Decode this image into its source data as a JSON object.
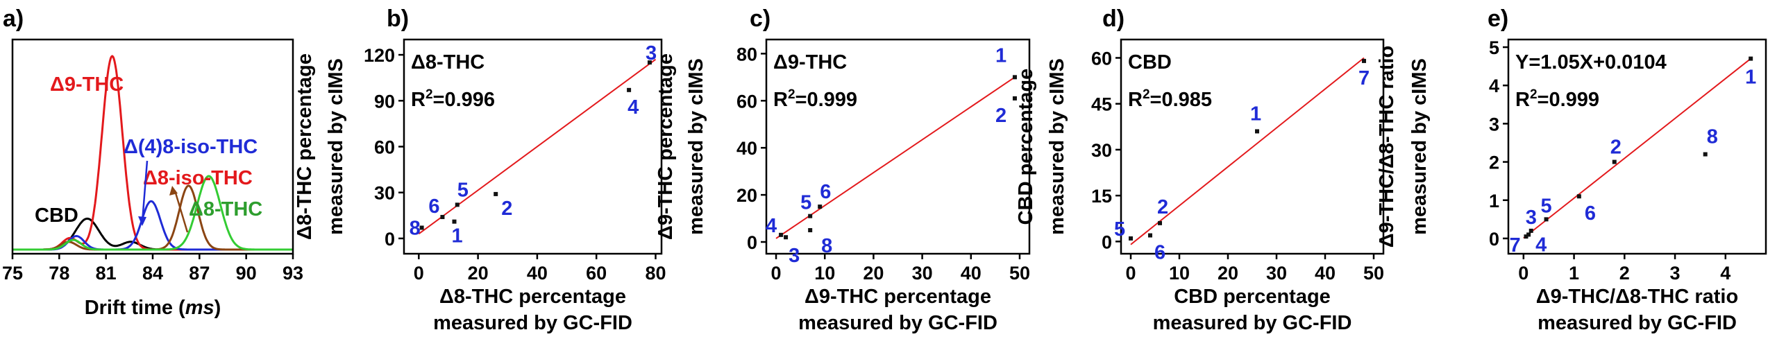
{
  "chart_data": [
    {
      "id": "a",
      "panel_label": "a)",
      "type": "line",
      "xlabel": "Drift time (ms)",
      "xlabel_main": "Drift time (",
      "xlabel_unit": "ms",
      "xlabel_close": ")",
      "xlim": [
        75,
        93
      ],
      "xticks": [
        "75",
        "78",
        "81",
        "84",
        "87",
        "90",
        "93"
      ],
      "grid": false,
      "series": [
        {
          "name": "CBD",
          "color": "#000000",
          "peaks": [
            {
              "center": 79.8,
              "height": 0.16,
              "sigma": 0.75
            },
            {
              "center": 82.6,
              "height": 0.04,
              "sigma": 0.6
            }
          ]
        },
        {
          "name": "Δ9-THC",
          "color": "#e3191c",
          "peaks": [
            {
              "center": 81.4,
              "height": 1.0,
              "sigma": 0.65
            },
            {
              "center": 78.7,
              "height": 0.06,
              "sigma": 0.5
            }
          ]
        },
        {
          "name": "Δ(4)8-iso-THC",
          "color": "#1f2bd6",
          "peaks": [
            {
              "center": 83.9,
              "height": 0.25,
              "sigma": 0.6
            },
            {
              "center": 79.1,
              "height": 0.07,
              "sigma": 0.5
            }
          ]
        },
        {
          "name": "Δ8-iso-THC",
          "color": "#8b4513",
          "peaks": [
            {
              "center": 86.3,
              "height": 0.33,
              "sigma": 0.6
            },
            {
              "center": 78.6,
              "height": 0.04,
              "sigma": 0.5
            }
          ]
        },
        {
          "name": "Δ8-THC",
          "color": "#33cc33",
          "peaks": [
            {
              "center": 87.6,
              "height": 0.38,
              "sigma": 0.75
            },
            {
              "center": 78.9,
              "height": 0.05,
              "sigma": 0.5
            }
          ]
        }
      ],
      "annotations": [
        "Δ9-THC",
        "Δ(4)8-iso-THC",
        "Δ8-iso-THC",
        "CBD",
        "Δ8-THC"
      ]
    },
    {
      "id": "b",
      "panel_label": "b)",
      "type": "scatter",
      "xlabel": "Δ8-THC percentage",
      "xlabel2": "measured by GC-FID",
      "ylabel": "Δ8-THC percentage",
      "ylabel2": "measured by cIMS",
      "xlim": [
        -5,
        82
      ],
      "ylim": [
        -10,
        130
      ],
      "xticks": [
        0,
        20,
        40,
        60,
        80
      ],
      "yticks": [
        0,
        30,
        60,
        90,
        120
      ],
      "title_text": "Δ8-THC",
      "r2_text": "=0.996",
      "fit": {
        "x": [
          0,
          80
        ],
        "y": [
          3,
          117
        ]
      },
      "points": [
        {
          "x": 1,
          "y": 7,
          "label": "8"
        },
        {
          "x": 12,
          "y": 11,
          "label": "1"
        },
        {
          "x": 8,
          "y": 14,
          "label": "6"
        },
        {
          "x": 13,
          "y": 22,
          "label": "5"
        },
        {
          "x": 26,
          "y": 29,
          "label": "2"
        },
        {
          "x": 71,
          "y": 97,
          "label": "4"
        },
        {
          "x": 78,
          "y": 115,
          "label": "3"
        }
      ]
    },
    {
      "id": "c",
      "panel_label": "c)",
      "type": "scatter",
      "xlabel": "Δ9-THC percentage",
      "xlabel2": "measured by GC-FID",
      "ylabel": "Δ9-THC percentage",
      "ylabel2": "measured by cIMS",
      "xlim": [
        -2,
        52
      ],
      "ylim": [
        -5,
        86
      ],
      "xticks": [
        0,
        10,
        20,
        30,
        40,
        50
      ],
      "yticks": [
        0,
        20,
        40,
        60,
        80
      ],
      "title_text": "Δ9-THC",
      "r2_text": "=0.999",
      "fit": {
        "x": [
          0,
          49
        ],
        "y": [
          1.5,
          70
        ]
      },
      "points": [
        {
          "x": 1,
          "y": 3,
          "label": "4"
        },
        {
          "x": 2,
          "y": 2,
          "label": "3"
        },
        {
          "x": 7,
          "y": 5,
          "label": "8"
        },
        {
          "x": 7,
          "y": 11,
          "label": "5"
        },
        {
          "x": 9,
          "y": 15,
          "label": "6"
        },
        {
          "x": 49,
          "y": 61,
          "label": "2"
        },
        {
          "x": 49,
          "y": 70,
          "label": "1"
        }
      ]
    },
    {
      "id": "d",
      "panel_label": "d)",
      "type": "scatter",
      "xlabel": "CBD percentage",
      "xlabel2": "measured by GC-FID",
      "ylabel": "CBD percentage",
      "ylabel2": "measured by cIMS",
      "xlim": [
        -2,
        52
      ],
      "ylim": [
        -4,
        66
      ],
      "xticks": [
        0,
        10,
        20,
        30,
        40,
        50
      ],
      "yticks": [
        0,
        15,
        30,
        45,
        60
      ],
      "title_text": "CBD",
      "r2_text": "=0.985",
      "fit": {
        "x": [
          0,
          48
        ],
        "y": [
          -1,
          60
        ]
      },
      "points": [
        {
          "x": 0,
          "y": 1,
          "label": "5"
        },
        {
          "x": 4,
          "y": 2,
          "label": "6"
        },
        {
          "x": 6,
          "y": 6,
          "label": "2"
        },
        {
          "x": 26,
          "y": 36,
          "label": "1"
        },
        {
          "x": 48,
          "y": 59,
          "label": "7"
        }
      ]
    },
    {
      "id": "e",
      "panel_label": "e)",
      "type": "scatter",
      "xlabel": "Δ9-THC/Δ8-THC ratio",
      "xlabel2": "measured by GC-FID",
      "ylabel": "Δ9-THC/Δ8-THC ratio",
      "ylabel2": "measured by cIMS",
      "xlim": [
        -0.3,
        4.8
      ],
      "ylim": [
        -0.4,
        5.2
      ],
      "xticks": [
        0,
        1,
        2,
        3,
        4
      ],
      "yticks": [
        0,
        1,
        2,
        3,
        4,
        5
      ],
      "title_text": "Y=1.05X+0.0104",
      "r2_text": "=0.999",
      "fit": {
        "x": [
          0,
          4.5
        ],
        "y": [
          0.01,
          4.7
        ]
      },
      "points": [
        {
          "x": 0.05,
          "y": 0.05,
          "label": "7"
        },
        {
          "x": 0.1,
          "y": 0.1,
          "label": "4"
        },
        {
          "x": 0.15,
          "y": 0.2,
          "label": "3"
        },
        {
          "x": 0.45,
          "y": 0.5,
          "label": "5"
        },
        {
          "x": 1.1,
          "y": 1.1,
          "label": "6"
        },
        {
          "x": 1.8,
          "y": 2.0,
          "label": "2"
        },
        {
          "x": 3.6,
          "y": 2.2,
          "label": "8"
        },
        {
          "x": 4.5,
          "y": 4.7,
          "label": "1"
        }
      ]
    }
  ]
}
